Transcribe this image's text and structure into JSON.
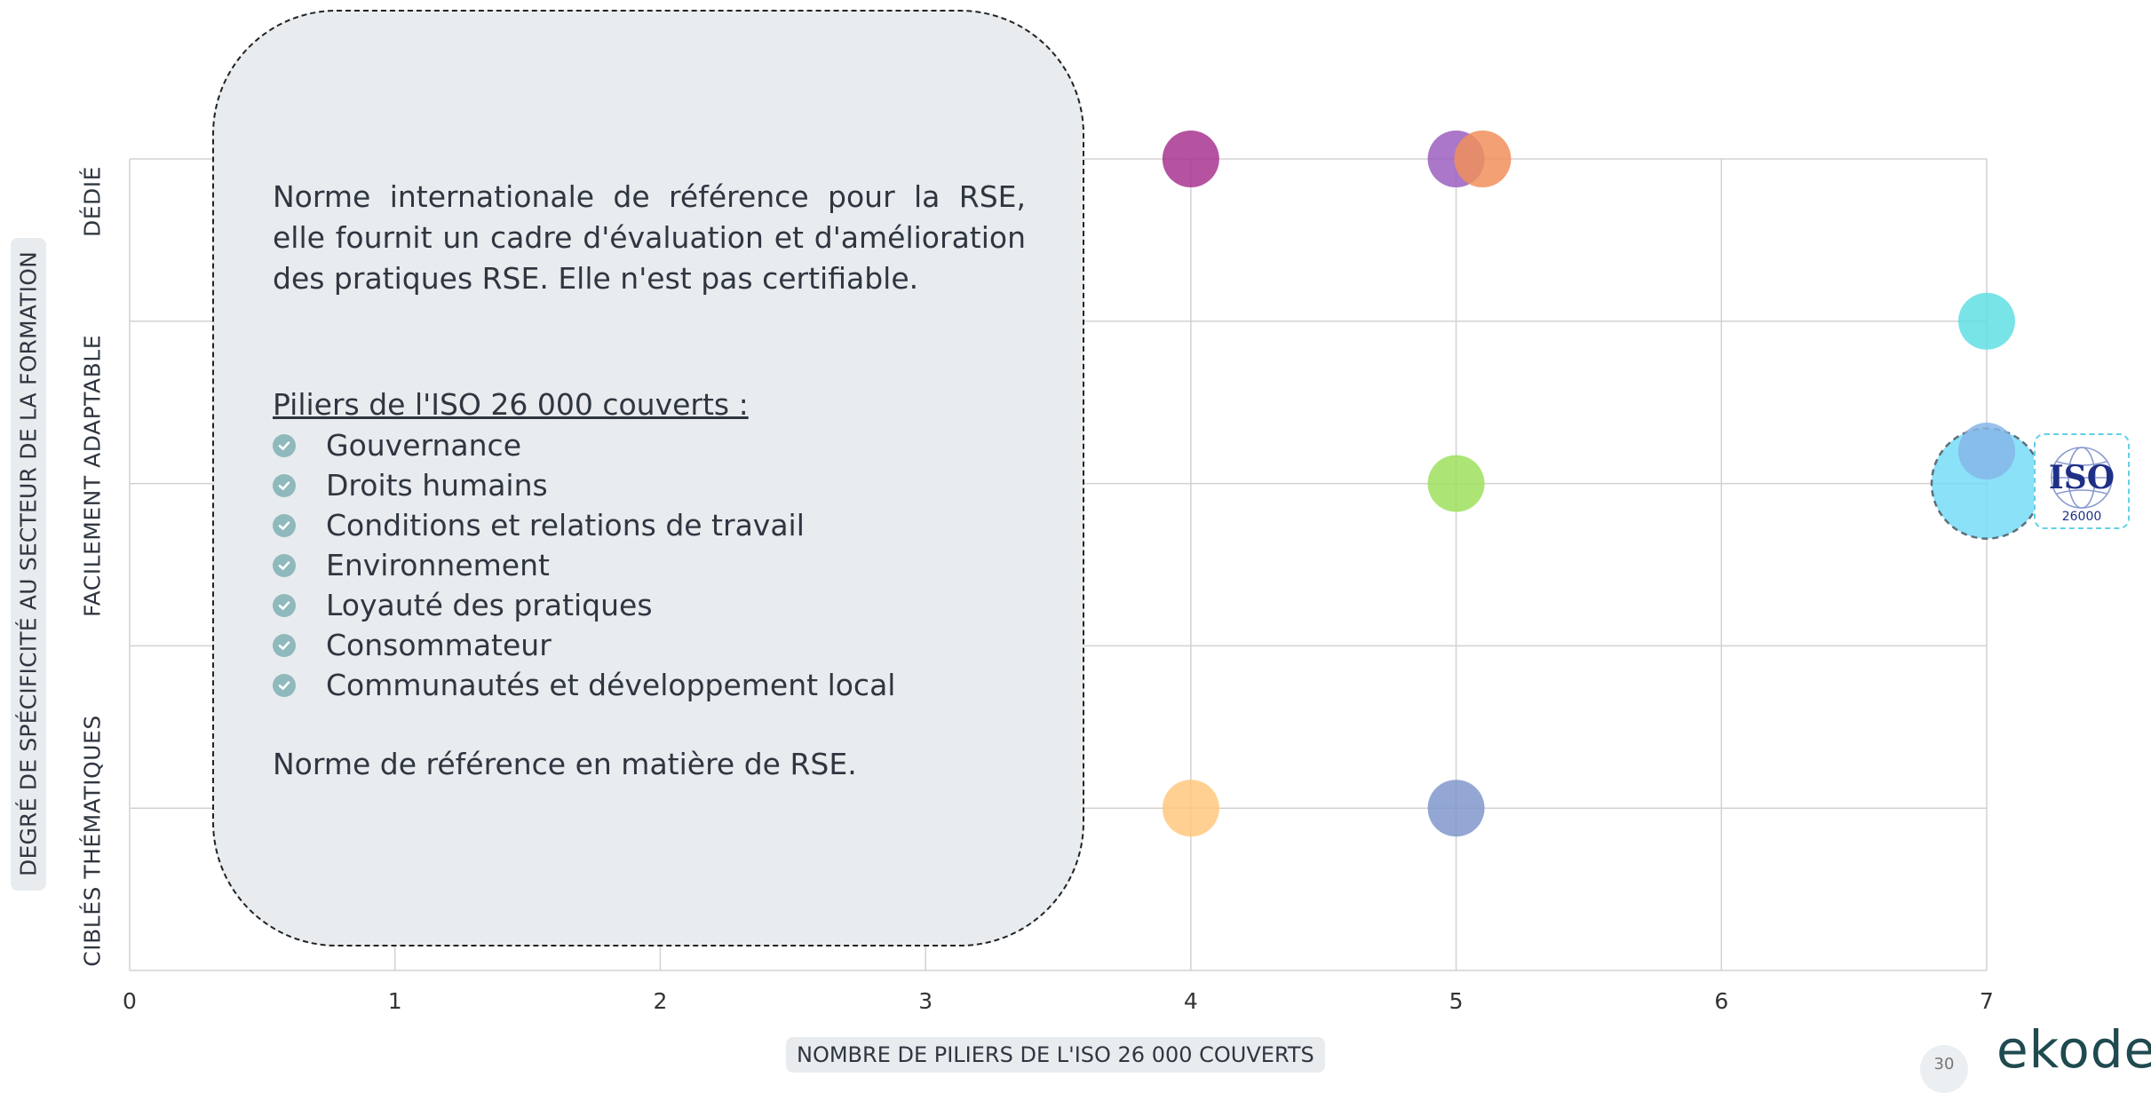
{
  "chart_data": {
    "type": "scatter",
    "xlabel": "NOMBRE DE PILIERS DE L'ISO 26 000 COUVERTS",
    "ylabel": "DEGRÉ DE SPÉCIFICITÉ AU SECTEUR DE LA FORMATION",
    "xlim": [
      0,
      7
    ],
    "ylim": [
      0,
      5
    ],
    "x_ticks": [
      "0",
      "1",
      "2",
      "3",
      "4",
      "5",
      "6",
      "7"
    ],
    "y_categories": [
      "CIBLÉS THÉMATIQUES",
      "FACILEMENT ADAPTABLE",
      "DÉDIÉ"
    ],
    "grid": true,
    "points": [
      {
        "x": 4,
        "y": 5,
        "color": "#a8358f"
      },
      {
        "x": 5,
        "y": 5,
        "color": "#9b5fc0"
      },
      {
        "x": 5.1,
        "y": 5,
        "color": "#f08f5c"
      },
      {
        "x": 7,
        "y": 4,
        "color": "#62dfe3"
      },
      {
        "x": 5,
        "y": 3,
        "color": "#9ee05e"
      },
      {
        "x": 7,
        "y": 3,
        "color": "#76dcf7",
        "highlighted": true
      },
      {
        "x": 7,
        "y": 3.2,
        "color": "#86b6e8"
      },
      {
        "x": 4,
        "y": 1,
        "color": "#ffc87e"
      },
      {
        "x": 5,
        "y": 1,
        "color": "#8198cc"
      }
    ]
  },
  "info_card": {
    "description": "Norme internationale de référence pour la RSE, elle fournit un cadre d'évaluation et d'amélioration des pratiques RSE. Elle n'est pas certifiable.",
    "pillars_title": "Piliers de l'ISO 26 000 couverts :",
    "pillars": [
      "Gouvernance",
      "Droits humains",
      "Conditions et relations de travail",
      "Environnement",
      "Loyauté des pratiques",
      "Consommateur",
      "Communautés et développement local"
    ],
    "check_icon": "check-circle-icon",
    "footer": "Norme de référence en matière de RSE."
  },
  "iso_logo": {
    "text": "ISO",
    "number": "26000"
  },
  "footer": {
    "page_number": "30",
    "brand": "ekodev"
  }
}
